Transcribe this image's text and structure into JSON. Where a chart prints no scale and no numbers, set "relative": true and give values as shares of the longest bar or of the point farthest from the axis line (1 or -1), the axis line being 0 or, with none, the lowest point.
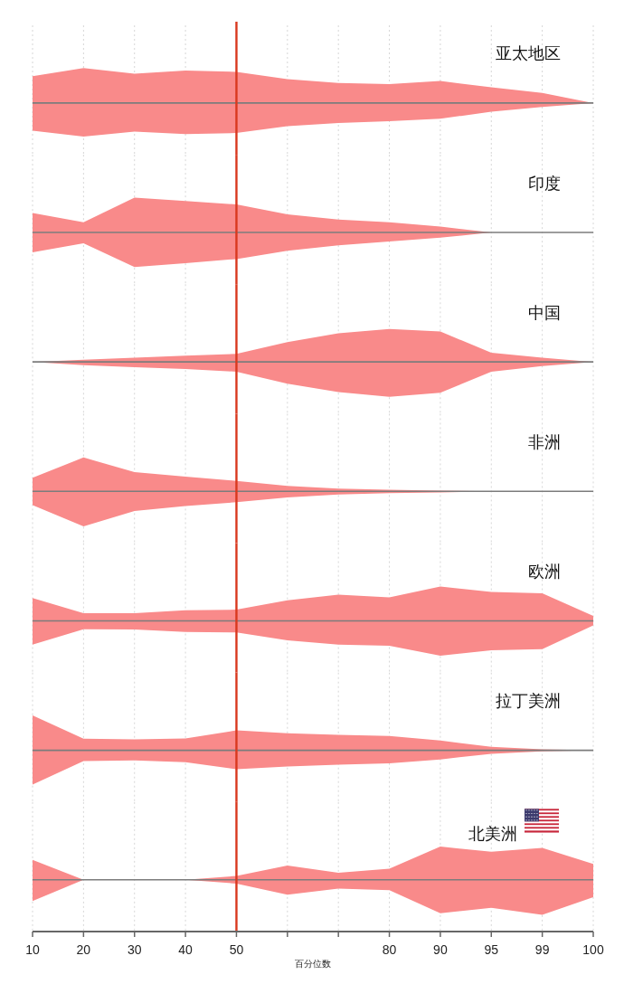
{
  "chart_data": [
    {
      "type": "area",
      "title": "亚太地区",
      "categories": [
        "10",
        "20",
        "30",
        "40",
        "50",
        null,
        null,
        "80",
        "90",
        "95",
        "99",
        "100"
      ],
      "relative": true,
      "grid": "x",
      "tick_labels": false,
      "ref_lines": [
        {
          "axis": "x",
          "value": "50",
          "color": "#d9381e"
        }
      ],
      "series": [
        {
          "color": "#f98a8a",
          "values": [
            0.77,
            1.0,
            0.84,
            0.93,
            0.89,
            0.68,
            0.57,
            0.54,
            0.63,
            0.45,
            0.29,
            0
          ]
        },
        {
          "color": "#f98a8a",
          "values": [
            -0.79,
            -0.96,
            -0.82,
            -0.89,
            -0.86,
            -0.66,
            -0.57,
            -0.52,
            -0.45,
            -0.25,
            -0.11,
            0
          ]
        }
      ]
    },
    {
      "type": "area",
      "title": "印度",
      "categories": [
        "10",
        "20",
        "30",
        "40",
        "50",
        null,
        null,
        "80",
        "90",
        "95",
        "99",
        "100"
      ],
      "relative": true,
      "grid": "x",
      "tick_labels": false,
      "ref_lines": [
        {
          "axis": "x",
          "value": "50",
          "color": "#d9381e"
        }
      ],
      "series": [
        {
          "color": "#f98a8a",
          "values": [
            0.56,
            0.29,
            1.0,
            0.9,
            0.8,
            0.52,
            0.37,
            0.29,
            0.17,
            0,
            0,
            0
          ]
        },
        {
          "color": "#f98a8a",
          "values": [
            -0.57,
            -0.31,
            -0.99,
            -0.88,
            -0.76,
            -0.52,
            -0.37,
            -0.26,
            -0.15,
            0,
            0,
            0
          ]
        }
      ]
    },
    {
      "type": "area",
      "title": "中国",
      "categories": [
        "10",
        "20",
        "30",
        "40",
        "50",
        null,
        null,
        "80",
        "90",
        "95",
        "99",
        "100"
      ],
      "relative": true,
      "grid": "x",
      "tick_labels": false,
      "ref_lines": [
        {
          "axis": "x",
          "value": "50",
          "color": "#d9381e"
        }
      ],
      "series": [
        {
          "color": "#f98a8a",
          "values": [
            0,
            0.06,
            0.12,
            0.18,
            0.23,
            0.57,
            0.82,
            0.94,
            0.87,
            0.26,
            0.12,
            0
          ]
        },
        {
          "color": "#f98a8a",
          "values": [
            0,
            -0.09,
            -0.15,
            -0.2,
            -0.28,
            -0.62,
            -0.86,
            -1.0,
            -0.88,
            -0.28,
            -0.12,
            0
          ]
        }
      ]
    },
    {
      "type": "area",
      "title": "非洲",
      "categories": [
        "10",
        "20",
        "30",
        "40",
        "50",
        null,
        null,
        "80",
        "90",
        "95",
        "99",
        "100"
      ],
      "relative": true,
      "grid": "x",
      "tick_labels": false,
      "ref_lines": [
        {
          "axis": "x",
          "value": "50",
          "color": "#d9381e"
        }
      ],
      "series": [
        {
          "color": "#f98a8a",
          "values": [
            0.39,
            0.97,
            0.55,
            0.42,
            0.3,
            0.16,
            0.08,
            0.05,
            0.02,
            0,
            0,
            0
          ]
        },
        {
          "color": "#f98a8a",
          "values": [
            -0.39,
            -1.0,
            -0.56,
            -0.42,
            -0.31,
            -0.17,
            -0.09,
            -0.05,
            -0.03,
            0,
            0,
            0
          ]
        }
      ]
    },
    {
      "type": "area",
      "title": "欧洲",
      "categories": [
        "10",
        "20",
        "30",
        "40",
        "50",
        null,
        null,
        "80",
        "90",
        "95",
        "99",
        "100"
      ],
      "relative": true,
      "grid": "x",
      "tick_labels": false,
      "ref_lines": [
        {
          "axis": "x",
          "value": "50",
          "color": "#d9381e"
        }
      ],
      "series": [
        {
          "color": "#f98a8a",
          "values": [
            0.65,
            0.22,
            0.22,
            0.3,
            0.32,
            0.59,
            0.75,
            0.67,
            0.98,
            0.83,
            0.79,
            0.14
          ]
        },
        {
          "color": "#f98a8a",
          "values": [
            -0.68,
            -0.24,
            -0.25,
            -0.32,
            -0.33,
            -0.56,
            -0.68,
            -0.71,
            -1.0,
            -0.84,
            -0.81,
            -0.13
          ]
        }
      ]
    },
    {
      "type": "area",
      "title": "拉丁美洲",
      "categories": [
        "10",
        "20",
        "30",
        "40",
        "50",
        null,
        null,
        "80",
        "90",
        "95",
        "99",
        "100"
      ],
      "relative": true,
      "grid": "x",
      "tick_labels": false,
      "ref_lines": [
        {
          "axis": "x",
          "value": "50",
          "color": "#d9381e"
        }
      ],
      "series": [
        {
          "color": "#f98a8a",
          "values": [
            1.0,
            0.33,
            0.31,
            0.34,
            0.57,
            0.49,
            0.44,
            0.41,
            0.28,
            0.1,
            0.03,
            0
          ]
        },
        {
          "color": "#f98a8a",
          "values": [
            -0.98,
            -0.31,
            -0.29,
            -0.34,
            -0.54,
            -0.46,
            -0.41,
            -0.37,
            -0.26,
            -0.1,
            -0.03,
            0
          ]
        }
      ]
    },
    {
      "type": "area",
      "title": "北美洲",
      "xlabel": "百分位数",
      "categories": [
        "10",
        "20",
        "30",
        "40",
        "50",
        null,
        null,
        "80",
        "90",
        "95",
        "99",
        "100"
      ],
      "relative": true,
      "grid": "x",
      "tick_labels": "x",
      "ref_lines": [
        {
          "axis": "x",
          "value": "50",
          "color": "#d9381e"
        }
      ],
      "series": [
        {
          "color": "#f98a8a",
          "values": [
            0.57,
            0,
            0,
            0,
            0.11,
            0.41,
            0.2,
            0.32,
            0.95,
            0.8,
            0.91,
            0.45
          ]
        },
        {
          "color": "#f98a8a",
          "values": [
            -0.61,
            0,
            0,
            0,
            -0.11,
            -0.43,
            -0.25,
            -0.3,
            -0.96,
            -0.8,
            -1.0,
            -0.5
          ]
        }
      ]
    }
  ]
}
